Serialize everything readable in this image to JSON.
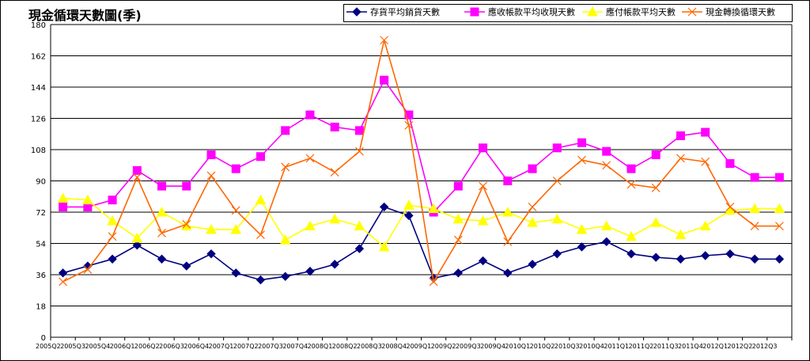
{
  "chart_data": {
    "type": "line",
    "title": "現金循環天數圖(季)",
    "ylim": [
      0,
      180
    ],
    "yticks": [
      0,
      18,
      36,
      54,
      72,
      90,
      108,
      126,
      144,
      162,
      180
    ],
    "grid": true,
    "legend_position": "top-right",
    "categories": [
      "2005Q2",
      "2005Q3",
      "2005Q4",
      "2006Q1",
      "2006Q2",
      "2006Q3",
      "2006Q4",
      "2007Q1",
      "2007Q2",
      "2007Q3",
      "2007Q4",
      "2008Q1",
      "2008Q2",
      "2008Q3",
      "2008Q4",
      "2009Q1",
      "2009Q2",
      "2009Q3",
      "2009Q4",
      "2010Q1",
      "2010Q2",
      "2010Q3",
      "2010Q4",
      "2011Q1",
      "2011Q2",
      "2011Q3",
      "2011Q4",
      "2012Q1",
      "2012Q2",
      "2012Q3"
    ],
    "series": [
      {
        "name": "存貨平均銷貨天數",
        "color": "#000080",
        "marker": "diamond",
        "values": [
          37,
          41,
          45,
          53,
          45,
          41,
          48,
          37,
          33,
          35,
          38,
          42,
          51,
          75,
          70,
          34,
          37,
          44,
          37,
          42,
          48,
          52,
          55,
          48,
          46,
          45,
          47,
          48,
          45,
          45
        ]
      },
      {
        "name": "應收帳款平均收現天數",
        "color": "#FF00FF",
        "marker": "square",
        "values": [
          75,
          75,
          79,
          96,
          87,
          87,
          105,
          97,
          104,
          119,
          128,
          121,
          119,
          148,
          128,
          72,
          87,
          109,
          90,
          97,
          109,
          112,
          107,
          97,
          105,
          116,
          118,
          100,
          92,
          92
        ]
      },
      {
        "name": "應付帳款平均天數",
        "color": "#FFFF00",
        "marker": "triangle",
        "values": [
          80,
          79,
          67,
          57,
          72,
          64,
          62,
          62,
          79,
          56,
          64,
          68,
          64,
          52,
          76,
          74,
          68,
          67,
          72,
          66,
          68,
          62,
          64,
          58,
          66,
          59,
          64,
          73,
          74,
          74
        ]
      },
      {
        "name": "現金轉換循環天數",
        "color": "#FF6600",
        "marker": "x",
        "values": [
          32,
          39,
          58,
          92,
          60,
          65,
          93,
          73,
          59,
          98,
          103,
          95,
          107,
          171,
          122,
          32,
          56,
          87,
          55,
          75,
          90,
          102,
          99,
          88,
          86,
          103,
          101,
          75,
          64,
          64
        ]
      }
    ]
  }
}
